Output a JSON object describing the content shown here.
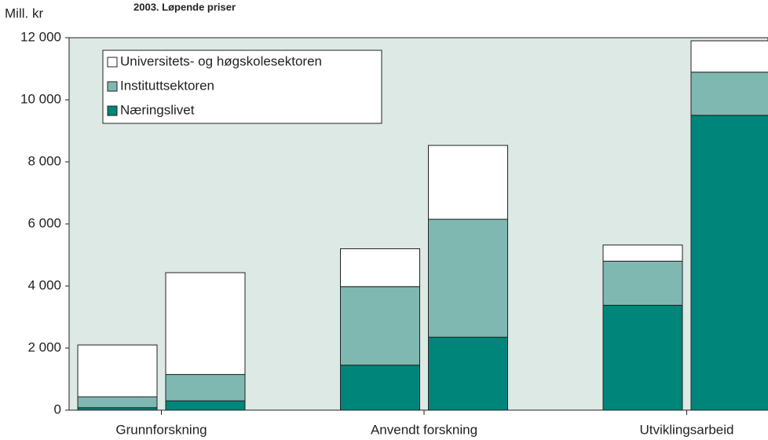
{
  "chart_data": {
    "type": "bar",
    "stacked": true,
    "subtitle": "2003. Løpende priser",
    "y_label": "Mill. kr",
    "categories": [
      "Grunnforskning",
      "Anvendt forskning",
      "Utviklingsarbeid"
    ],
    "series": [
      {
        "name": "Næringslivet",
        "color": "#00857a",
        "values": [
          [
            80,
            300
          ],
          [
            1450,
            2350
          ],
          [
            3380,
            9500
          ]
        ]
      },
      {
        "name": "Instituttsektoren",
        "color": "#7fb8b0",
        "values": [
          [
            350,
            850
          ],
          [
            2530,
            3800
          ],
          [
            1420,
            1390
          ]
        ]
      },
      {
        "name": "Universitets- og høgskolesektoren",
        "color": "#ffffff",
        "values": [
          [
            1670,
            3280
          ],
          [
            1220,
            2380
          ],
          [
            520,
            1010
          ]
        ]
      }
    ],
    "ylim": [
      0,
      12000
    ],
    "yticks": [
      0,
      {
        "value": 2000,
        "label": "2 000"
      },
      {
        "value": 4000,
        "label": "4 000"
      },
      {
        "value": 6000,
        "label": "6 000"
      },
      {
        "value": 8000,
        "label": "8 000"
      },
      {
        "value": 10000,
        "label": "10 000"
      },
      {
        "value": 12000,
        "label": "12 000"
      }
    ],
    "plot_background": "#dde9e5"
  }
}
